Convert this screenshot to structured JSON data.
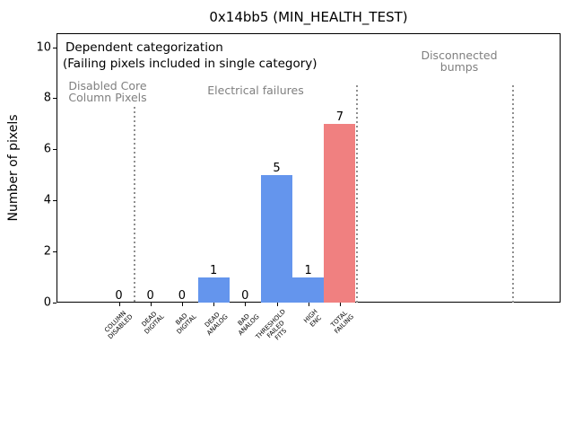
{
  "title": "0x14bb5 (MIN_HEALTH_TEST)",
  "ylabel": "Number of pixels",
  "annotation": {
    "line1": "Dependent categorization",
    "line2": "(Failing pixels included in single category)"
  },
  "sections": [
    {
      "label": "Disabled Core\nColumn Pixels"
    },
    {
      "label": "Electrical failures"
    },
    {
      "label": "Disconnected\nbumps"
    }
  ],
  "colors": {
    "bar_blue": "#6495ed",
    "bar_red": "#f08080",
    "section_text_gray": "#7f7f7f",
    "divider_gray": "#8f8f8f"
  },
  "chart_data": {
    "type": "bar",
    "title": "0x14bb5 (MIN_HEALTH_TEST)",
    "xlabel": "",
    "ylabel": "Number of pixels",
    "categories": [
      "COLUMN\nDISABLED",
      "DEAD\nDIGITAL",
      "BAD\nDIGITAL",
      "DEAD\nANALOG",
      "BAD\nANALOG",
      "THRESHOLD\nFAILED\nFITS",
      "HIGH\nENC",
      "TOTAL\nFAILING"
    ],
    "values": [
      0,
      0,
      0,
      1,
      0,
      5,
      1,
      7
    ],
    "value_labels": [
      "0",
      "0",
      "0",
      "1",
      "0",
      "5",
      "1",
      "7"
    ],
    "bar_colors": [
      "#6495ed",
      "#6495ed",
      "#6495ed",
      "#6495ed",
      "#6495ed",
      "#6495ed",
      "#6495ed",
      "#f08080"
    ],
    "yticks": [
      0,
      2,
      4,
      6,
      8,
      10
    ],
    "ylim": [
      0,
      10.6
    ],
    "grid": false,
    "legend": null,
    "annotations": [
      "Dependent categorization",
      "(Failing pixels included in single category)",
      "Disabled Core Column Pixels",
      "Electrical failures",
      "Disconnected bumps"
    ]
  }
}
